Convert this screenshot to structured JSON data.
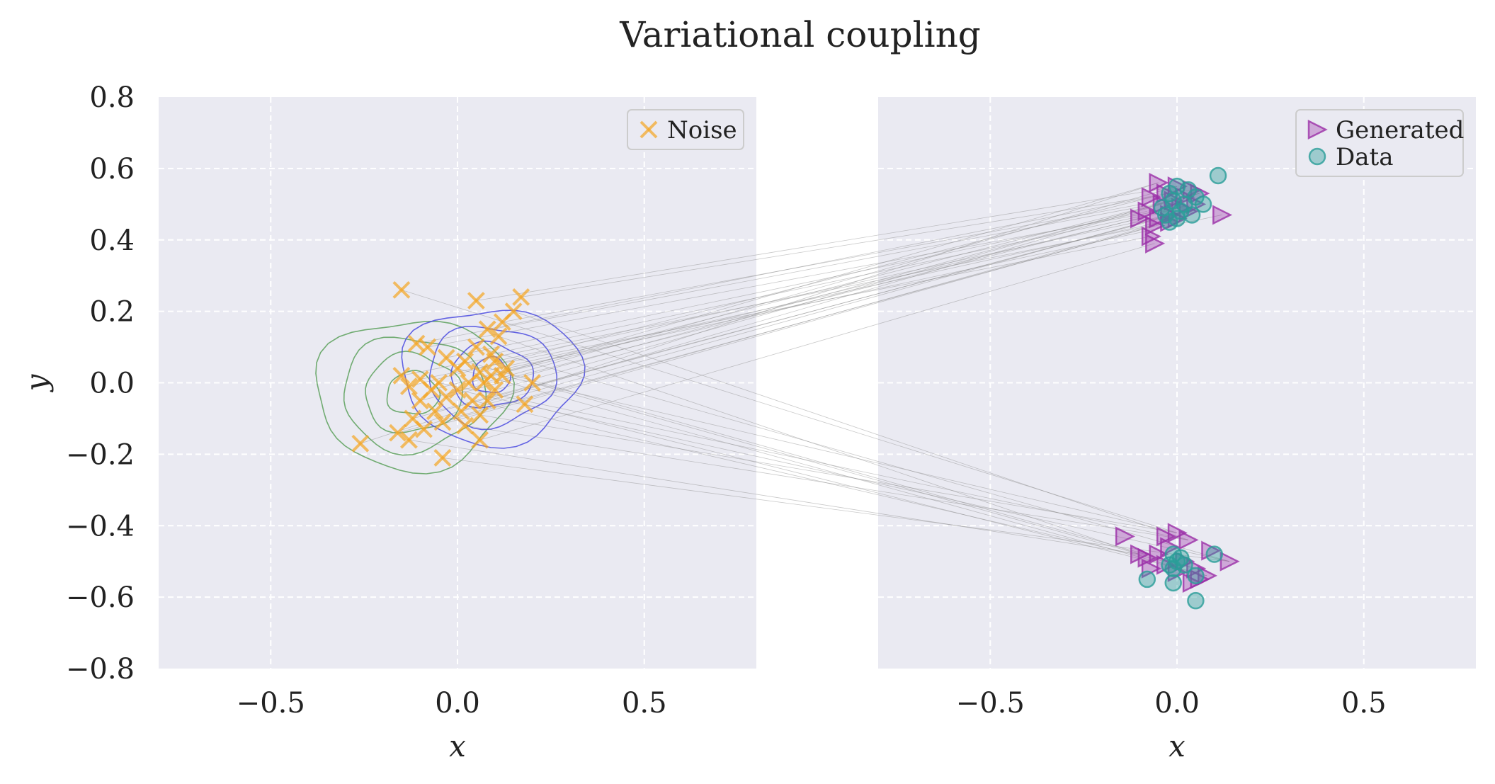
{
  "chart_data": {
    "type": "scatter",
    "title": "Variational coupling",
    "panels": [
      {
        "id": "left",
        "xlabel": "x",
        "ylabel": "y",
        "xlim": [
          -0.8,
          0.8
        ],
        "ylim": [
          -0.8,
          0.8
        ],
        "xticks": [
          {
            "value": -0.5,
            "label": "−0.5"
          },
          {
            "value": 0.0,
            "label": "0.0"
          },
          {
            "value": 0.5,
            "label": "0.5"
          }
        ],
        "yticks": [
          {
            "value": 0.8,
            "label": "0.8"
          },
          {
            "value": 0.6,
            "label": "0.6"
          },
          {
            "value": 0.4,
            "label": "0.4"
          },
          {
            "value": 0.2,
            "label": "0.2"
          },
          {
            "value": 0.0,
            "label": "0.0"
          },
          {
            "value": -0.2,
            "label": "−0.2"
          },
          {
            "value": -0.4,
            "label": "−0.4"
          },
          {
            "value": -0.6,
            "label": "−0.6"
          },
          {
            "value": -0.8,
            "label": "−0.8"
          }
        ],
        "grid": true,
        "legend_position": "top-right",
        "legend": [
          {
            "label": "Noise",
            "marker": "x",
            "color": "#f5a623"
          }
        ]
      },
      {
        "id": "right",
        "xlabel": "x",
        "xlim": [
          -0.8,
          0.8
        ],
        "ylim": [
          -0.8,
          0.8
        ],
        "xticks": [
          {
            "value": -0.5,
            "label": "−0.5"
          },
          {
            "value": 0.0,
            "label": "0.0"
          },
          {
            "value": 0.5,
            "label": "0.5"
          }
        ],
        "grid": true,
        "legend_position": "top-right",
        "legend": [
          {
            "label": "Generated",
            "marker": "triangle-right",
            "color": "#9b2fa8"
          },
          {
            "label": "Data",
            "marker": "circle",
            "color": "#2a9d98"
          }
        ]
      }
    ],
    "series": [
      {
        "name": "Noise",
        "panel": "left",
        "marker": "x",
        "color": "#f5a623",
        "points": [
          [
            -0.15,
            0.26
          ],
          [
            0.05,
            0.23
          ],
          [
            0.17,
            0.24
          ],
          [
            0.15,
            0.2
          ],
          [
            0.12,
            0.17
          ],
          [
            0.08,
            0.15
          ],
          [
            0.11,
            0.13
          ],
          [
            -0.11,
            0.11
          ],
          [
            -0.08,
            0.1
          ],
          [
            0.05,
            0.1
          ],
          [
            0.09,
            0.08
          ],
          [
            -0.03,
            0.07
          ],
          [
            0.02,
            0.06
          ],
          [
            0.1,
            0.06
          ],
          [
            0.13,
            0.04
          ],
          [
            0.0,
            0.04
          ],
          [
            0.06,
            0.03
          ],
          [
            0.09,
            0.02
          ],
          [
            0.12,
            0.02
          ],
          [
            -0.15,
            0.02
          ],
          [
            -0.1,
            0.01
          ],
          [
            -0.05,
            0.0
          ],
          [
            0.03,
            0.0
          ],
          [
            0.07,
            0.0
          ],
          [
            0.2,
            0.0
          ],
          [
            -0.13,
            -0.01
          ],
          [
            -0.07,
            -0.02
          ],
          [
            0.0,
            -0.02
          ],
          [
            0.1,
            -0.02
          ],
          [
            -0.03,
            -0.04
          ],
          [
            0.04,
            -0.05
          ],
          [
            0.08,
            -0.05
          ],
          [
            -0.1,
            -0.05
          ],
          [
            0.18,
            -0.06
          ],
          [
            -0.06,
            -0.08
          ],
          [
            0.01,
            -0.08
          ],
          [
            0.06,
            -0.09
          ],
          [
            -0.12,
            -0.1
          ],
          [
            -0.04,
            -0.11
          ],
          [
            0.02,
            -0.12
          ],
          [
            -0.09,
            -0.13
          ],
          [
            -0.16,
            -0.14
          ],
          [
            -0.13,
            -0.16
          ],
          [
            0.06,
            -0.16
          ],
          [
            -0.26,
            -0.17
          ],
          [
            -0.04,
            -0.21
          ]
        ]
      },
      {
        "name": "Generated",
        "panel": "right",
        "marker": "triangle-right",
        "color": "#9b2fa8",
        "points": [
          [
            -0.05,
            0.56
          ],
          [
            0.0,
            0.55
          ],
          [
            0.04,
            0.54
          ],
          [
            -0.03,
            0.53
          ],
          [
            0.06,
            0.53
          ],
          [
            -0.07,
            0.52
          ],
          [
            0.02,
            0.52
          ],
          [
            -0.01,
            0.51
          ],
          [
            0.05,
            0.5
          ],
          [
            -0.04,
            0.5
          ],
          [
            0.01,
            0.49
          ],
          [
            -0.08,
            0.48
          ],
          [
            0.03,
            0.48
          ],
          [
            -0.02,
            0.47
          ],
          [
            0.12,
            0.47
          ],
          [
            -0.05,
            0.46
          ],
          [
            0.0,
            0.46
          ],
          [
            -0.1,
            0.46
          ],
          [
            -0.06,
            0.44
          ],
          [
            -0.02,
            0.45
          ],
          [
            -0.07,
            0.41
          ],
          [
            -0.06,
            0.39
          ],
          [
            0.0,
            -0.42
          ],
          [
            -0.03,
            -0.43
          ],
          [
            -0.14,
            -0.43
          ],
          [
            0.03,
            -0.44
          ],
          [
            -0.02,
            -0.46
          ],
          [
            0.09,
            -0.47
          ],
          [
            -0.1,
            -0.48
          ],
          [
            -0.05,
            -0.48
          ],
          [
            -0.08,
            -0.49
          ],
          [
            0.14,
            -0.5
          ],
          [
            0.02,
            -0.5
          ],
          [
            -0.03,
            -0.51
          ],
          [
            0.05,
            -0.52
          ],
          [
            -0.07,
            -0.52
          ],
          [
            0.0,
            -0.53
          ],
          [
            0.08,
            -0.54
          ],
          [
            0.06,
            -0.55
          ],
          [
            0.04,
            -0.56
          ]
        ]
      },
      {
        "name": "Data",
        "panel": "right",
        "marker": "circle",
        "color": "#2a9d98",
        "points": [
          [
            0.11,
            0.58
          ],
          [
            0.0,
            0.55
          ],
          [
            0.03,
            0.54
          ],
          [
            -0.02,
            0.53
          ],
          [
            0.05,
            0.52
          ],
          [
            -0.01,
            0.51
          ],
          [
            0.02,
            0.5
          ],
          [
            0.07,
            0.5
          ],
          [
            -0.04,
            0.49
          ],
          [
            0.01,
            0.48
          ],
          [
            0.04,
            0.47
          ],
          [
            -0.03,
            0.47
          ],
          [
            0.0,
            0.46
          ],
          [
            -0.02,
            0.45
          ],
          [
            0.1,
            -0.48
          ],
          [
            -0.01,
            -0.48
          ],
          [
            0.01,
            -0.49
          ],
          [
            0.0,
            -0.5
          ],
          [
            -0.02,
            -0.51
          ],
          [
            0.02,
            -0.51
          ],
          [
            -0.01,
            -0.52
          ],
          [
            0.05,
            -0.54
          ],
          [
            -0.08,
            -0.55
          ],
          [
            -0.01,
            -0.56
          ],
          [
            0.05,
            -0.61
          ]
        ]
      }
    ],
    "coupling_lines": {
      "description_none": "",
      "color": "#888888"
    },
    "contours": [
      {
        "panel": "left",
        "color": "#5aa05a",
        "center": [
          -0.12,
          -0.03
        ],
        "radii": [
          [
            0.26,
            0.21
          ],
          [
            0.19,
            0.16
          ],
          [
            0.13,
            0.11
          ],
          [
            0.07,
            0.06
          ]
        ]
      },
      {
        "panel": "left",
        "color": "#4a4ae0",
        "center": [
          0.09,
          0.02
        ],
        "radii": [
          [
            0.24,
            0.19
          ],
          [
            0.17,
            0.14
          ],
          [
            0.11,
            0.09
          ],
          [
            0.05,
            0.05
          ]
        ]
      }
    ]
  }
}
